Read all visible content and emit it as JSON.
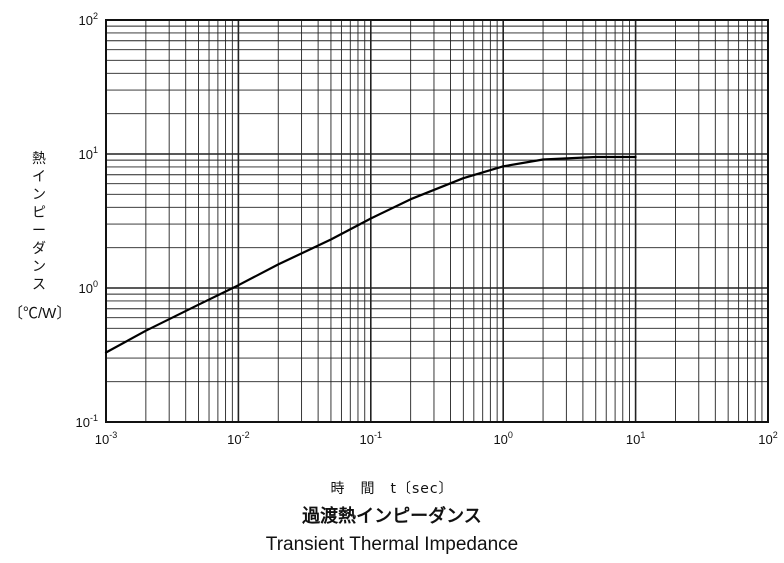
{
  "chart_data": {
    "type": "line",
    "title": "過渡熱インピーダンス",
    "subtitle": "Transient Thermal Impedance",
    "xlabel": "時　間　t〔sec〕",
    "ylabel": "熱インピーダンス",
    "ylabel_unit": "〔℃/W〕",
    "x_scale": "log",
    "y_scale": "log",
    "xlim": [
      0.001,
      100
    ],
    "ylim": [
      0.1,
      100
    ],
    "x_ticks": [
      {
        "base": "10",
        "exp": "-3"
      },
      {
        "base": "10",
        "exp": "-2"
      },
      {
        "base": "10",
        "exp": "-1"
      },
      {
        "base": "10",
        "exp": "0"
      },
      {
        "base": "10",
        "exp": "1"
      },
      {
        "base": "10",
        "exp": "2"
      }
    ],
    "y_ticks": [
      {
        "base": "10",
        "exp": "-1"
      },
      {
        "base": "10",
        "exp": "0"
      },
      {
        "base": "10",
        "exp": "1"
      },
      {
        "base": "10",
        "exp": "2"
      }
    ],
    "grid": true,
    "series": [
      {
        "x": [
          0.001,
          0.002,
          0.005,
          0.01,
          0.02,
          0.05,
          0.1,
          0.2,
          0.5,
          1,
          2,
          5,
          10
        ],
        "y": [
          0.33,
          0.48,
          0.75,
          1.05,
          1.5,
          2.3,
          3.3,
          4.6,
          6.6,
          8.1,
          9.1,
          9.5,
          9.5
        ]
      }
    ]
  }
}
